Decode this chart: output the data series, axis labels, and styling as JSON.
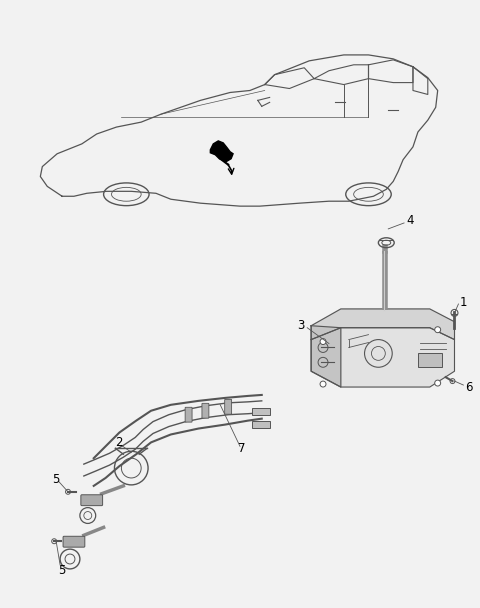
{
  "background_color": "#f2f2f2",
  "line_color": "#555555",
  "fig_width": 4.8,
  "fig_height": 6.08,
  "dpi": 100
}
